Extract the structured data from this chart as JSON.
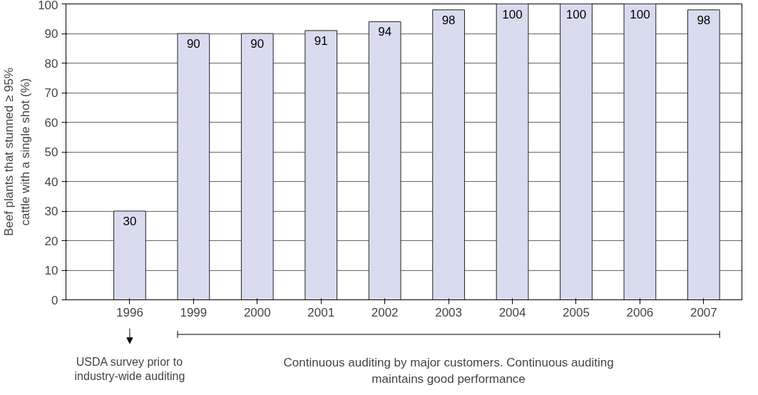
{
  "chart_data": {
    "type": "bar",
    "ylabel": "Beef plants that stunned ≥ 95% cattle with a single shot (%)",
    "categories": [
      "1996",
      "1999",
      "2000",
      "2001",
      "2002",
      "2003",
      "2004",
      "2005",
      "2006",
      "2007"
    ],
    "values": [
      30,
      90,
      90,
      91,
      94,
      98,
      100,
      100,
      100,
      98
    ],
    "color": "#d9dcee",
    "ylim": [
      0,
      100
    ],
    "yticks": [
      0,
      10,
      20,
      30,
      40,
      50,
      60,
      70,
      80,
      90,
      100
    ],
    "grid": "y",
    "data_labels": true,
    "annotations": [
      "USDA survey prior to industry-wide auditing",
      "Continuous auditing by major customers. Continuous auditing maintains good performance"
    ]
  }
}
